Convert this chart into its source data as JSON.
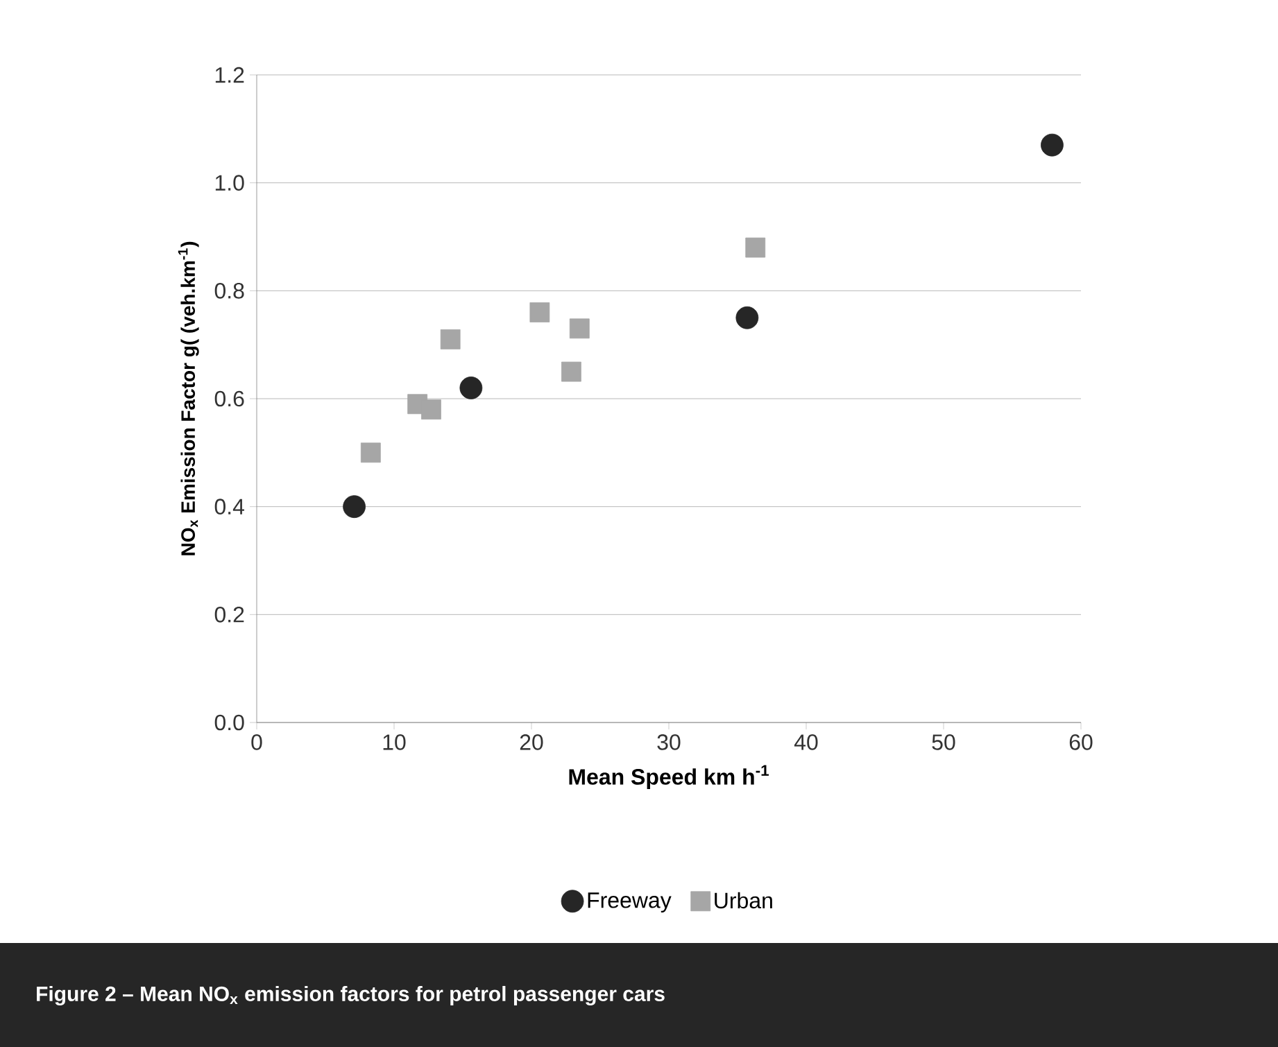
{
  "chart_data": {
    "type": "scatter",
    "title": "Figure 2 – Mean NO$_{x}$ emission factors for petrol passenger cars",
    "xlabel": "Mean Speed km h$^{-1}$",
    "ylabel": "NO$_{x}$ Emission Factor g( (veh.km$^{-1}$)",
    "xlim": [
      0,
      60
    ],
    "xticks": [
      0,
      10,
      20,
      30,
      40,
      50,
      60
    ],
    "ylim": [
      0,
      1.2
    ],
    "yticks": [
      {
        "value": 0,
        "label": "0.0"
      },
      0.2,
      0.4,
      0.6,
      0.8,
      {
        "value": 1,
        "label": "1.0"
      },
      1.2
    ],
    "grid": "y",
    "legend": "bottom",
    "series": [
      {
        "name": "Freeway",
        "color": "#262626",
        "marker": "circle",
        "x": [
          7.1,
          15.6,
          35.7,
          57.9
        ],
        "values": [
          0.4,
          0.62,
          0.75,
          1.07
        ]
      },
      {
        "name": "Urban",
        "color": "#a6a6a6",
        "marker": "square",
        "x": [
          8.3,
          11.7,
          12.7,
          14.1,
          20.6,
          22.9,
          23.5,
          36.3
        ],
        "values": [
          0.5,
          0.59,
          0.58,
          0.71,
          0.76,
          0.65,
          0.73,
          0.88
        ]
      }
    ]
  }
}
